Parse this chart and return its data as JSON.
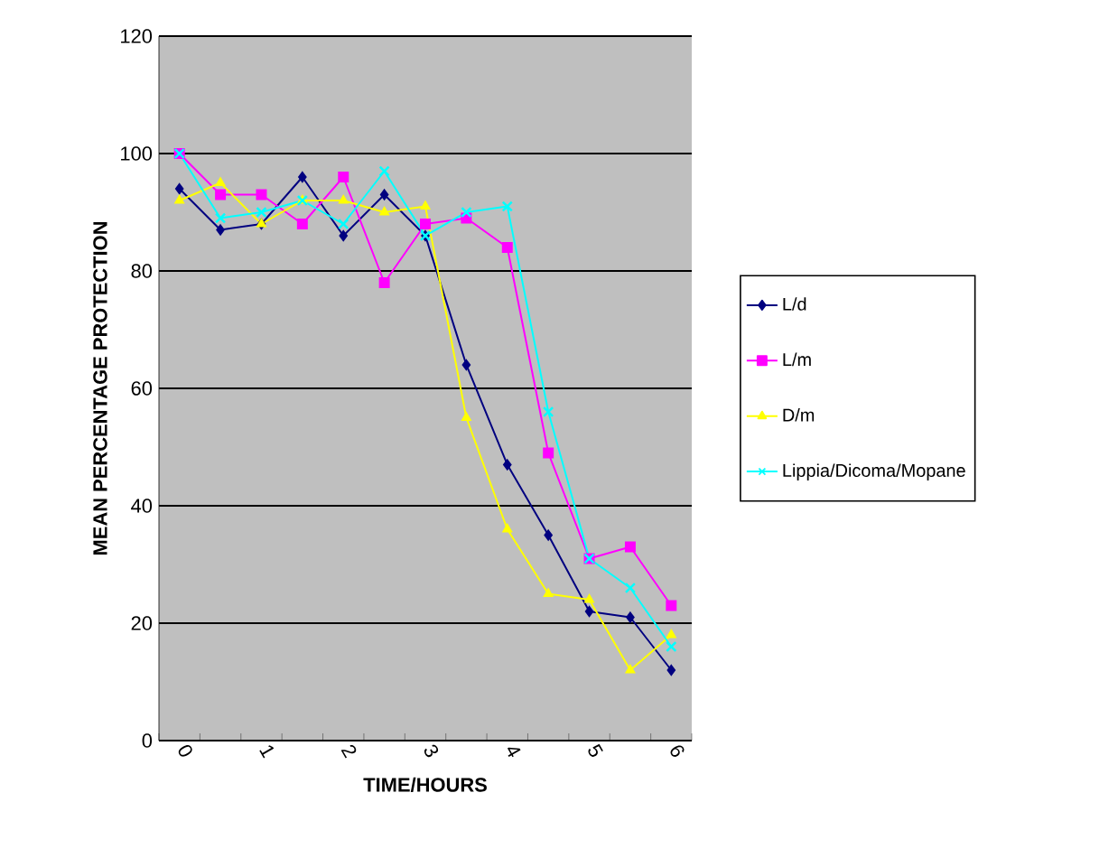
{
  "chart_data": {
    "type": "line",
    "xlabel": "TIME/HOURS",
    "ylabel": "MEAN PERCENTAGE PROTECTION",
    "categories": [
      "0",
      null,
      "1",
      null,
      "2",
      null,
      "3",
      null,
      "4",
      null,
      "5",
      null,
      "6"
    ],
    "ylim": [
      0,
      120
    ],
    "yticks": [
      0,
      20,
      40,
      60,
      80,
      100,
      120
    ],
    "grid": "y",
    "legend": "right",
    "series": [
      {
        "name": "L/d",
        "color": "#000080",
        "marker": "diamond",
        "values": [
          94,
          87,
          88,
          96,
          86,
          93,
          86,
          64,
          47,
          35,
          22,
          21,
          12
        ]
      },
      {
        "name": "L/m",
        "color": "#ff00ff",
        "marker": "square",
        "values": [
          100,
          93,
          93,
          88,
          96,
          78,
          88,
          89,
          84,
          49,
          31,
          33,
          23
        ]
      },
      {
        "name": "D/m",
        "color": "#ffff00",
        "marker": "triangle",
        "values": [
          92,
          95,
          88,
          92,
          92,
          90,
          91,
          55,
          36,
          25,
          24,
          12,
          18
        ]
      },
      {
        "name": "Lippia/Dicoma/Mopane",
        "color": "#00ffff",
        "marker": "cross",
        "values": [
          100,
          89,
          90,
          92,
          88,
          97,
          86,
          90,
          91,
          56,
          31,
          26,
          16
        ]
      }
    ]
  }
}
